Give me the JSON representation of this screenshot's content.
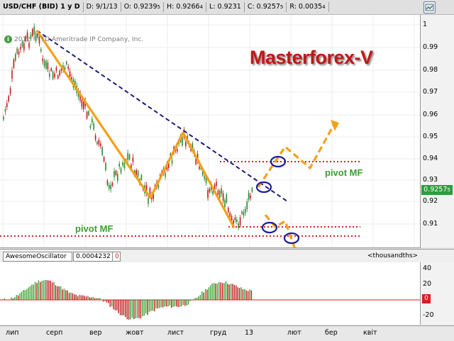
{
  "header": {
    "symbol": "USD/CHF (BID) 1 y D",
    "date": "D: 9/1/13",
    "open_main": "O: 0.9239",
    "open_sub": "5",
    "high_main": "H: 0.9266",
    "high_sub": "4",
    "low": "L: 0.9231",
    "close_main": "C: 0.9257",
    "close_sub": "5",
    "range_main": "R: 0.0035",
    "range_sub": "4"
  },
  "chart": {
    "copyright": "2012 © TD Ameritrade IP Company, Inc.",
    "info_icon_glyph": "i",
    "brand": "Masterforex-V",
    "pivot_right": "pivot MF",
    "pivot_left": "pivot MF",
    "y_ticks": [
      "1",
      "0.99",
      "0.98",
      "0.97",
      "0.96",
      "0.95",
      "0.94",
      "0.93",
      "0.92",
      "0.91"
    ],
    "current_price_main": "0.9257",
    "current_price_sub": "5"
  },
  "oscillator": {
    "name": "AwesomeOscillator",
    "value": "0.0004232",
    "zero_field": "0",
    "units": "<thousandths>",
    "y_ticks": [
      "40",
      "20",
      "0",
      "-20"
    ],
    "zero_badge": "0"
  },
  "xaxis": {
    "labels": [
      "лип",
      "серп",
      "вер",
      "жовт",
      "лист",
      "груд",
      "13",
      "лют",
      "бер",
      "квіт"
    ]
  },
  "colors": {
    "trend_line": "#1a1a7a",
    "zigzag": "#f5a01a",
    "pivot_dots": "#d42020",
    "bull_bar": "#2a8a2a",
    "bear_bar": "#c01818",
    "osc_up": "#3aa030",
    "osc_down": "#c01818"
  }
}
